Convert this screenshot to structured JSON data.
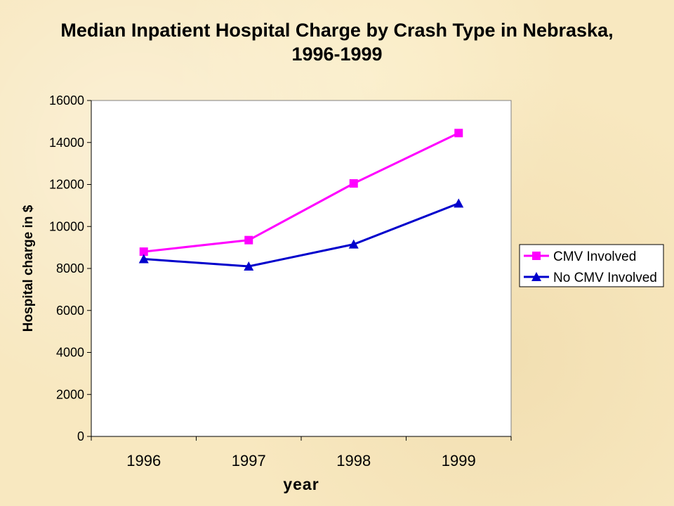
{
  "chart_data": {
    "type": "line",
    "title": "Median Inpatient Hospital Charge by Crash Type in Nebraska,",
    "subtitle": "1996-1999",
    "xlabel": "year",
    "ylabel": "Hospital charge in $",
    "categories": [
      "1996",
      "1997",
      "1998",
      "1999"
    ],
    "ylim": [
      0,
      16000
    ],
    "yticks": [
      "0",
      "2000",
      "4000",
      "6000",
      "8000",
      "10000",
      "12000",
      "14000",
      "16000"
    ],
    "grid": false,
    "legend_position": "right",
    "series": [
      {
        "name": "CMV Involved",
        "values": [
          8800,
          9350,
          12050,
          14450
        ],
        "color": "#ff00ff",
        "marker": "square"
      },
      {
        "name": "No CMV Involved",
        "values": [
          8450,
          8100,
          9150,
          11100
        ],
        "color": "#0000cc",
        "marker": "triangle"
      }
    ]
  }
}
